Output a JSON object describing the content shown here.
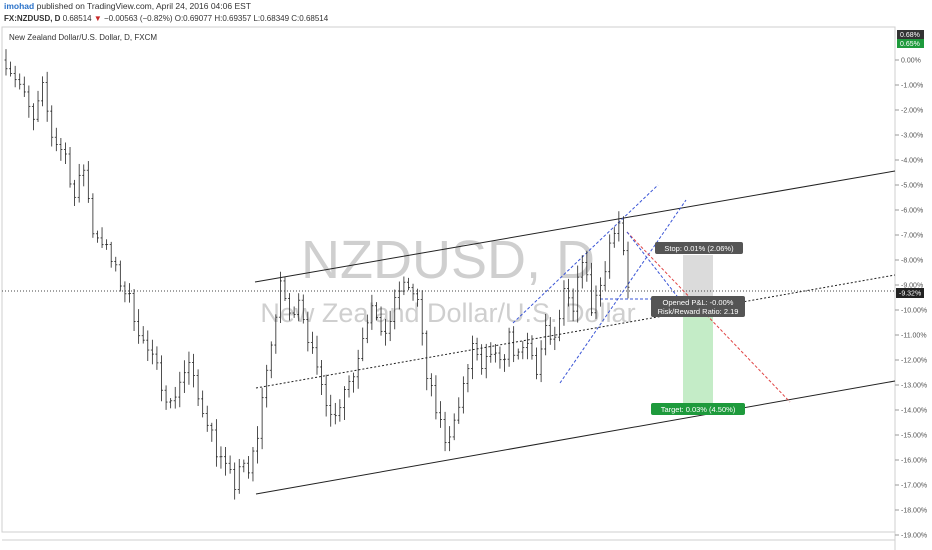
{
  "header": {
    "user": "imohad",
    "published_text": "published on TradingView.com, April 24, 2016 04:06 EST",
    "symbol": "FX:NZDUSD, D",
    "last": "0.68514",
    "change": "−0.00563 (−0.82%)",
    "ohlc": "O:0.69077 H:0.69357 L:0.68349 C:0.68514"
  },
  "chart_data": {
    "type": "candlestick",
    "title": "New Zealand Dollar/U.S. Dollar, D, FXCM",
    "watermark": "NZDUSD, D",
    "watermark_sub": "New Zealand Dollar/U.S. Dollar",
    "y_axis": {
      "unit": "%",
      "ticks": [
        "0.00%",
        "-1.00%",
        "-2.00%",
        "-3.00%",
        "-4.00%",
        "-5.00%",
        "-6.00%",
        "-7.00%",
        "-8.00%",
        "-9.00%",
        "-10.00%",
        "-11.00%",
        "-12.00%",
        "-13.00%",
        "-14.00%",
        "-15.00%",
        "-16.00%",
        "-17.00%",
        "-18.00%",
        "-19.00%"
      ],
      "range": [
        -19.0,
        1.0
      ],
      "current_label": "-9.32%",
      "current_value": -9.32,
      "badges": [
        {
          "text": "0.68%",
          "color": "#333333"
        },
        {
          "text": "0.65%",
          "color": "#1e9a3c"
        }
      ]
    },
    "series_path": [
      [
        0,
        0.0
      ],
      [
        3,
        -1.0
      ],
      [
        6,
        -2.5
      ],
      [
        8,
        -1.2
      ],
      [
        10,
        -3.0
      ],
      [
        13,
        -3.8
      ],
      [
        15,
        -5.5
      ],
      [
        17,
        -4.3
      ],
      [
        19,
        -6.8
      ],
      [
        21,
        -7.2
      ],
      [
        24,
        -8.5
      ],
      [
        27,
        -9.6
      ],
      [
        30,
        -11.3
      ],
      [
        33,
        -12.4
      ],
      [
        36,
        -13.8
      ],
      [
        38,
        -12.8
      ],
      [
        40,
        -12.2
      ],
      [
        42,
        -13.6
      ],
      [
        44,
        -14.3
      ],
      [
        46,
        -15.6
      ],
      [
        48,
        -16.4
      ],
      [
        50,
        -17.0
      ],
      [
        51,
        -16.2
      ],
      [
        53,
        -16.6
      ],
      [
        55,
        -15.0
      ],
      [
        57,
        -12.2
      ],
      [
        59,
        -10.6
      ],
      [
        60,
        -8.8
      ],
      [
        62,
        -10.3
      ],
      [
        64,
        -9.4
      ],
      [
        66,
        -11.0
      ],
      [
        68,
        -12.6
      ],
      [
        70,
        -13.5
      ],
      [
        72,
        -14.3
      ],
      [
        74,
        -13.0
      ],
      [
        76,
        -12.6
      ],
      [
        78,
        -10.9
      ],
      [
        80,
        -9.6
      ],
      [
        82,
        -11.2
      ],
      [
        84,
        -10.4
      ],
      [
        86,
        -9.2
      ],
      [
        88,
        -9.0
      ],
      [
        90,
        -9.7
      ],
      [
        92,
        -12.7
      ],
      [
        94,
        -14.0
      ],
      [
        96,
        -15.1
      ],
      [
        98,
        -14.5
      ],
      [
        100,
        -13.2
      ],
      [
        102,
        -11.4
      ],
      [
        104,
        -12.6
      ],
      [
        106,
        -11.7
      ],
      [
        108,
        -12.3
      ],
      [
        110,
        -11.1
      ],
      [
        112,
        -12.0
      ],
      [
        114,
        -11.4
      ],
      [
        116,
        -12.4
      ],
      [
        118,
        -10.9
      ],
      [
        120,
        -11.3
      ],
      [
        122,
        -9.4
      ],
      [
        124,
        -10.2
      ],
      [
        126,
        -7.8
      ],
      [
        128,
        -9.9
      ],
      [
        130,
        -9.0
      ],
      [
        132,
        -7.3
      ],
      [
        134,
        -6.6
      ],
      [
        136,
        -9.3
      ]
    ],
    "annotations": [
      {
        "kind": "position",
        "text": "Stop: 0.01% (2.06%)"
      },
      {
        "kind": "position",
        "text": "Opened P&L: -0.00%"
      },
      {
        "kind": "position",
        "text": "Risk/Reward Ratio: 2.19"
      },
      {
        "kind": "position",
        "text": "Target: 0.03% (4.50%)"
      }
    ],
    "grid": false,
    "colors": {
      "candles": "#222222",
      "trendlines": "#222222",
      "channel": "#3a55d6",
      "projection": "#e04545",
      "stop_zone": "#bdbdbd",
      "target_zone": "#a5e2a9",
      "target_label": "#1e9a3c",
      "label_dark": "#555555"
    }
  }
}
